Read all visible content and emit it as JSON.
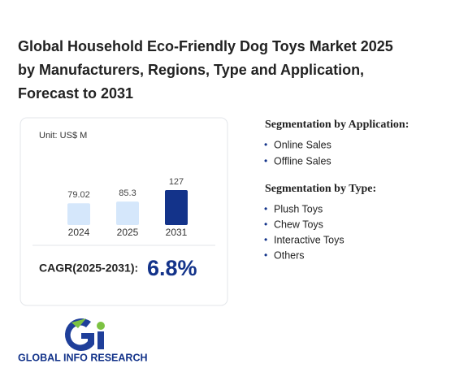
{
  "title_lines": [
    "Global Household Eco-Friendly Dog Toys Market 2025",
    "by Manufacturers, Regions, Type and Application,",
    "Forecast to 2031"
  ],
  "chart_data": {
    "type": "bar",
    "unit": "Unit: US$ M",
    "categories": [
      "2024",
      "2025",
      "2031"
    ],
    "values": [
      79.02,
      85.3,
      127
    ],
    "colors": [
      "#d5e7fb",
      "#d5e7fb",
      "#13338a"
    ]
  },
  "cagr": {
    "label": "CAGR(2025-2031):",
    "value": "6.8%"
  },
  "application": {
    "heading": "Segmentation by Application:",
    "items": [
      "Online Sales",
      "Offline Sales"
    ]
  },
  "type_segment": {
    "heading": "Segmentation by Type:",
    "items": [
      "Plush Toys",
      "Chew Toys",
      "Interactive Toys",
      "Others"
    ]
  },
  "logo": {
    "text": "GLOBAL INFO RESEARCH"
  }
}
